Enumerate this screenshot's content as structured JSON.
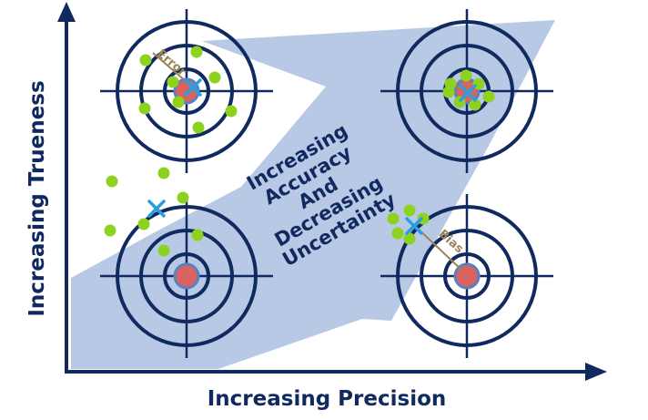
{
  "axes": {
    "x_label": "Increasing Precision",
    "y_label": "Increasing Trueness"
  },
  "center_label": [
    "Increasing",
    "Accuracy",
    "And",
    "Decreasing",
    "Uncertainty"
  ],
  "callouts": {
    "error": "Error",
    "bias": "Bias"
  },
  "targets": [
    {
      "id": "top-left",
      "trueness": "high",
      "precision": "low"
    },
    {
      "id": "top-right",
      "trueness": "high",
      "precision": "high"
    },
    {
      "id": "bottom-left",
      "trueness": "low",
      "precision": "low"
    },
    {
      "id": "bottom-right",
      "trueness": "low",
      "precision": "high"
    }
  ],
  "colors": {
    "navy": "#10295e",
    "band": "#b8c9e6",
    "bullseye": "#d9635f",
    "bullseye_ring": "#5b7fbf",
    "shot": "#8dd21f",
    "mean_marker": "#2a9fe0",
    "callout": "#9c8358"
  }
}
